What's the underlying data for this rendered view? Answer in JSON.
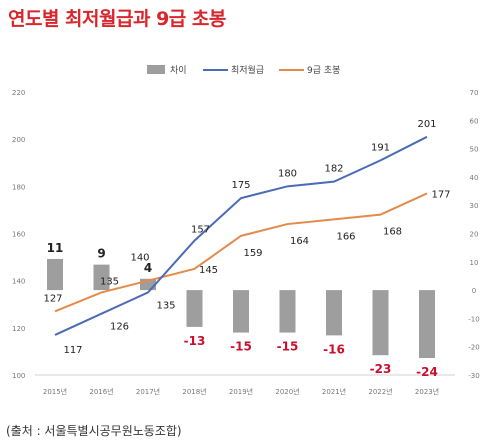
{
  "title": "연도별 최저월급과 9급 초봉",
  "source": "(출처 : 서울특별시공무원노동조합)",
  "colors": {
    "title": "#d7262c",
    "min_wage": "#4a6bb5",
    "grade9": "#e48a4a",
    "diff_bar": "#9e9e9e",
    "negative_label": "#c8102e",
    "positive_label": "#222222"
  },
  "chart_data": {
    "type": "bar+line",
    "categories": [
      "2015년",
      "2016년",
      "2017년",
      "2018년",
      "2019년",
      "2020년",
      "2021년",
      "2022년",
      "2023년"
    ],
    "series": [
      {
        "name": "차이",
        "type": "bar",
        "axis": "right",
        "values": [
          11,
          9,
          4,
          -13,
          -15,
          -15,
          -16,
          -23,
          -24
        ]
      },
      {
        "name": "최저월급",
        "type": "line",
        "axis": "left",
        "values": [
          117,
          126,
          135,
          157,
          175,
          180,
          182,
          191,
          201
        ]
      },
      {
        "name": "9급 초봉",
        "type": "line",
        "axis": "left",
        "values": [
          127,
          135,
          140,
          145,
          159,
          164,
          166,
          168,
          177
        ]
      }
    ],
    "left_axis": {
      "ylim": [
        100,
        220
      ],
      "ticks": [
        "100",
        "120",
        "140",
        "160",
        "180",
        "200",
        "220"
      ]
    },
    "right_axis": {
      "ylim": [
        -30,
        70
      ],
      "ticks": [
        "-30",
        "-20",
        "-10",
        "0",
        "10",
        "20",
        "30",
        "40",
        "50",
        "60",
        "70"
      ]
    },
    "legend": {
      "placement": "top",
      "entries": [
        "차이",
        "최저월급",
        "9급 초봉"
      ]
    },
    "grid": false
  }
}
